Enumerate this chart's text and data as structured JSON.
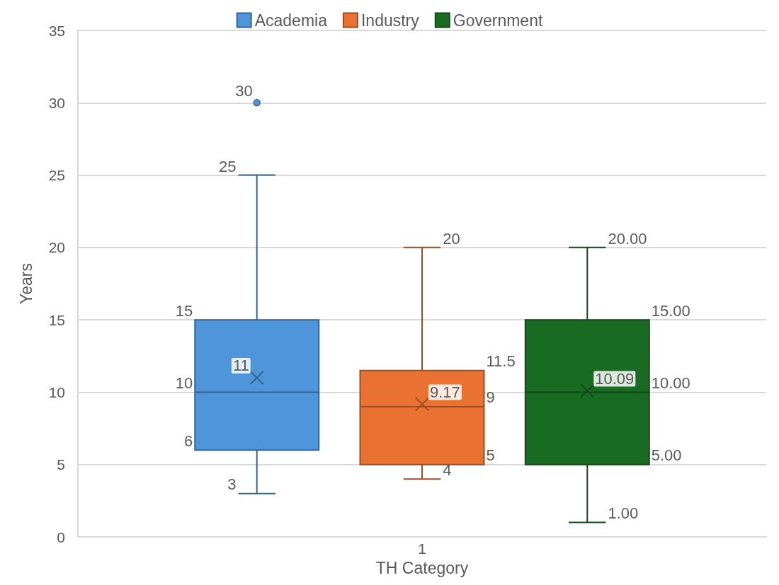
{
  "chart_data": {
    "type": "box",
    "xlabel": "TH Category",
    "ylabel": "Years",
    "categories": [
      "1"
    ],
    "ylim": [
      0,
      35
    ],
    "yticks": [
      0,
      5,
      10,
      15,
      20,
      25,
      30,
      35
    ],
    "grid": "y",
    "legend": "top",
    "series": [
      {
        "name": "Academia",
        "color": "#4e95d9",
        "boxes": [
          {
            "low": 3,
            "q1": 6,
            "median": 10,
            "q3": 15,
            "high": 25,
            "mean": 11,
            "outliers": [
              30
            ]
          }
        ],
        "value_labels": [
          {
            "low": "3",
            "q1": "6",
            "median": "10",
            "q3": "15",
            "high": "25",
            "mean": "11",
            "outliers": [
              "30"
            ]
          }
        ]
      },
      {
        "name": "Industry",
        "color": "#e97132",
        "boxes": [
          {
            "low": 4,
            "q1": 5,
            "median": 9,
            "q3": 11.5,
            "high": 20,
            "mean": 9.17
          }
        ],
        "value_labels": [
          {
            "low": "4",
            "q1": "5",
            "median": "9",
            "q3": "11.5",
            "high": "20",
            "mean": "9.17"
          }
        ]
      },
      {
        "name": "Government",
        "color": "#196b24",
        "boxes": [
          {
            "low": 1,
            "q1": 5,
            "median": 10,
            "q3": 15,
            "high": 20,
            "mean": 10.09
          }
        ],
        "value_labels": [
          {
            "low": "1.00",
            "q1": "5.00",
            "median": "10.00",
            "q3": "15.00",
            "high": "20.00",
            "mean": "10.09"
          }
        ]
      }
    ]
  }
}
